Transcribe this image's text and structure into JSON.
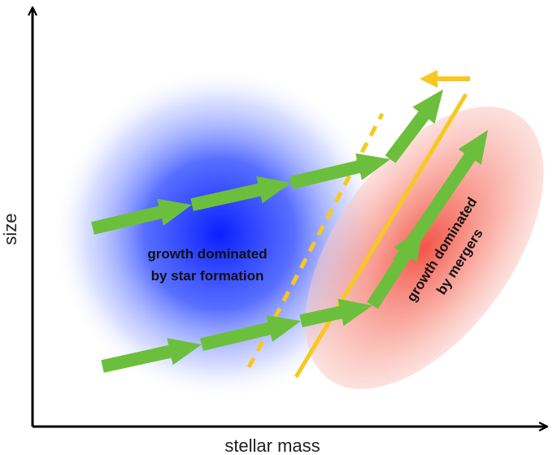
{
  "axes": {
    "x_label": "stellar mass",
    "y_label": "size"
  },
  "regions": {
    "star_formation": {
      "line1": "growth dominated",
      "line2": "by star formation"
    },
    "mergers": {
      "line1": "growth dominated",
      "line2": "by mergers"
    }
  },
  "colors": {
    "axis": "#000000",
    "star_formation_region": "#1a3cff",
    "mergers_region": "#f55a4a",
    "growth_arrow": "#6cbf3c",
    "boundary_line": "#f7c81e"
  }
}
